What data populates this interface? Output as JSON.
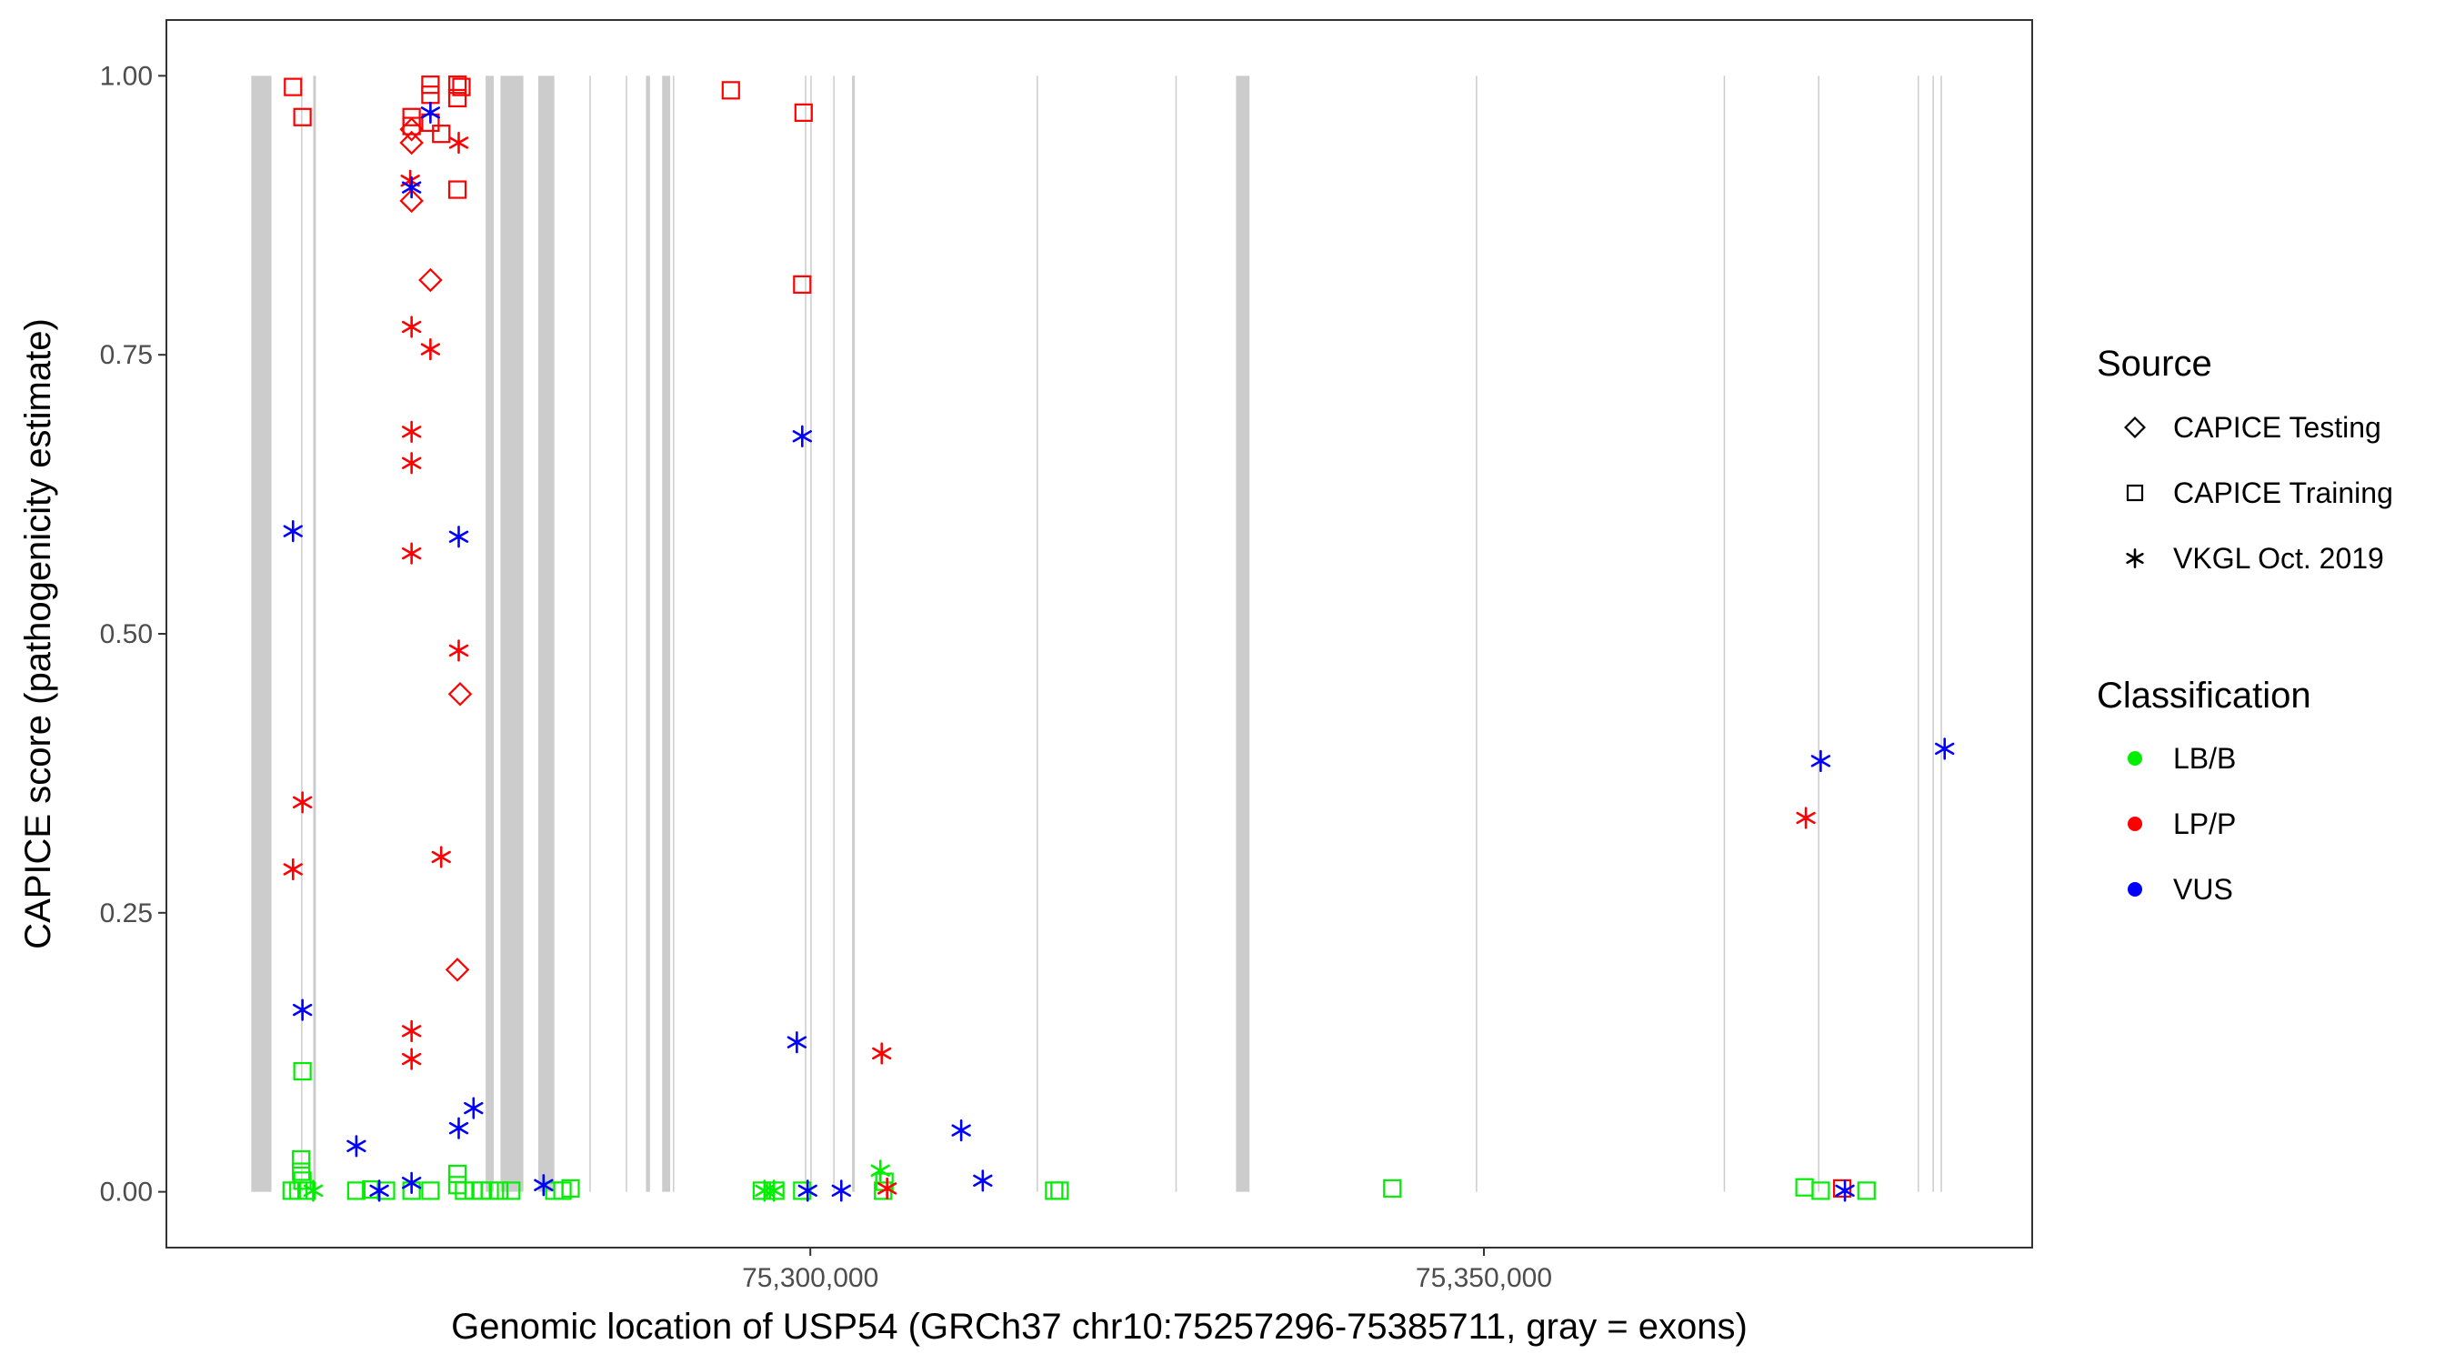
{
  "chart_data": {
    "type": "scatter",
    "title": "",
    "xlabel": "Genomic location of USP54 (GRCh37 chr10:75257296-75385711, gray = exons)",
    "ylabel": "CAPICE score (pathogenicity estimate)",
    "xlim": [
      75252200,
      75390700
    ],
    "ylim": [
      -0.05,
      1.05
    ],
    "x_ticks": [
      75300000,
      75350000
    ],
    "x_tick_labels": [
      "75,300,000",
      "75,350,000"
    ],
    "y_ticks": [
      0.0,
      0.25,
      0.5,
      0.75,
      1.0
    ],
    "y_tick_labels": [
      "0.00",
      "0.25",
      "0.50",
      "0.75",
      "1.00"
    ],
    "grid": false,
    "exons": [
      [
        75258500,
        75260000
      ],
      [
        75262200,
        75262300
      ],
      [
        75263100,
        75263300
      ],
      [
        75275900,
        75276500
      ],
      [
        75277000,
        75278700
      ],
      [
        75279800,
        75281000
      ],
      [
        75283600,
        75283700
      ],
      [
        75286300,
        75286400
      ],
      [
        75287800,
        75288100
      ],
      [
        75289000,
        75289600
      ],
      [
        75289800,
        75289900
      ],
      [
        75299600,
        75299700
      ],
      [
        75300000,
        75300100
      ],
      [
        75301700,
        75301800
      ],
      [
        75303100,
        75303300
      ],
      [
        75316800,
        75316900
      ],
      [
        75327100,
        75327200
      ],
      [
        75331600,
        75332600
      ],
      [
        75349400,
        75349500
      ],
      [
        75367800,
        75367900
      ],
      [
        75374800,
        75374900
      ],
      [
        75382200,
        75382300
      ],
      [
        75383300,
        75383400
      ],
      [
        75383900,
        75384000
      ]
    ],
    "legend": {
      "position": "right",
      "source_title": "Source",
      "source_items": [
        {
          "label": "CAPICE Testing",
          "shape": "diamond"
        },
        {
          "label": "CAPICE Training",
          "shape": "square"
        },
        {
          "label": "VKGL Oct. 2019",
          "shape": "asterisk"
        }
      ],
      "class_title": "Classification",
      "class_items": [
        {
          "label": "LB/B",
          "color": "#00ee00"
        },
        {
          "label": "LP/P",
          "color": "#ff0000"
        },
        {
          "label": "VUS",
          "color": "#0000ff"
        }
      ]
    },
    "series": [
      {
        "name": "CAPICE Testing",
        "shape": "diamond",
        "points": [
          {
            "x": 75270400,
            "y": 0.94,
            "cls": "LP/P"
          },
          {
            "x": 75270400,
            "y": 0.888,
            "cls": "LP/P"
          },
          {
            "x": 75270400,
            "y": 0.952,
            "cls": "LP/P"
          },
          {
            "x": 75271800,
            "y": 0.817,
            "cls": "LP/P"
          },
          {
            "x": 75274000,
            "y": 0.446,
            "cls": "LP/P"
          },
          {
            "x": 75273800,
            "y": 0.199,
            "cls": "LP/P"
          }
        ]
      },
      {
        "name": "CAPICE Training",
        "shape": "square",
        "points": [
          {
            "x": 75261600,
            "y": 0.99,
            "cls": "LP/P"
          },
          {
            "x": 75262300,
            "y": 0.963,
            "cls": "LP/P"
          },
          {
            "x": 75270400,
            "y": 0.963,
            "cls": "LP/P"
          },
          {
            "x": 75270400,
            "y": 0.955,
            "cls": "LP/P"
          },
          {
            "x": 75271800,
            "y": 0.992,
            "cls": "LP/P"
          },
          {
            "x": 75271800,
            "y": 0.983,
            "cls": "LP/P"
          },
          {
            "x": 75271800,
            "y": 0.958,
            "cls": "LP/P"
          },
          {
            "x": 75272600,
            "y": 0.948,
            "cls": "LP/P"
          },
          {
            "x": 75273800,
            "y": 0.992,
            "cls": "LP/P"
          },
          {
            "x": 75274100,
            "y": 0.99,
            "cls": "LP/P"
          },
          {
            "x": 75273800,
            "y": 0.98,
            "cls": "LP/P"
          },
          {
            "x": 75273800,
            "y": 0.898,
            "cls": "LP/P"
          },
          {
            "x": 75294100,
            "y": 0.987,
            "cls": "LP/P"
          },
          {
            "x": 75299500,
            "y": 0.967,
            "cls": "LP/P"
          },
          {
            "x": 75299400,
            "y": 0.813,
            "cls": "LP/P"
          },
          {
            "x": 75376600,
            "y": 0.003,
            "cls": "LP/P"
          },
          {
            "x": 75262300,
            "y": 0.108,
            "cls": "LB/B"
          },
          {
            "x": 75262200,
            "y": 0.029,
            "cls": "LB/B"
          },
          {
            "x": 75262200,
            "y": 0.018,
            "cls": "LB/B"
          },
          {
            "x": 75262300,
            "y": 0.01,
            "cls": "LB/B"
          },
          {
            "x": 75261500,
            "y": 0.001,
            "cls": "LB/B"
          },
          {
            "x": 75262000,
            "y": 0.001,
            "cls": "LB/B"
          },
          {
            "x": 75262600,
            "y": 0.001,
            "cls": "LB/B"
          },
          {
            "x": 75266300,
            "y": 0.001,
            "cls": "LB/B"
          },
          {
            "x": 75267400,
            "y": 0.002,
            "cls": "LB/B"
          },
          {
            "x": 75268500,
            "y": 0.001,
            "cls": "LB/B"
          },
          {
            "x": 75270400,
            "y": 0.001,
            "cls": "LB/B"
          },
          {
            "x": 75271800,
            "y": 0.001,
            "cls": "LB/B"
          },
          {
            "x": 75273800,
            "y": 0.016,
            "cls": "LB/B"
          },
          {
            "x": 75273800,
            "y": 0.006,
            "cls": "LB/B"
          },
          {
            "x": 75274300,
            "y": 0.001,
            "cls": "LB/B"
          },
          {
            "x": 75275000,
            "y": 0.001,
            "cls": "LB/B"
          },
          {
            "x": 75275600,
            "y": 0.001,
            "cls": "LB/B"
          },
          {
            "x": 75276200,
            "y": 0.001,
            "cls": "LB/B"
          },
          {
            "x": 75276900,
            "y": 0.001,
            "cls": "LB/B"
          },
          {
            "x": 75277800,
            "y": 0.001,
            "cls": "LB/B"
          },
          {
            "x": 75281000,
            "y": 0.001,
            "cls": "LB/B"
          },
          {
            "x": 75281600,
            "y": 0.001,
            "cls": "LB/B"
          },
          {
            "x": 75282200,
            "y": 0.003,
            "cls": "LB/B"
          },
          {
            "x": 75296400,
            "y": 0.001,
            "cls": "LB/B"
          },
          {
            "x": 75297400,
            "y": 0.001,
            "cls": "LB/B"
          },
          {
            "x": 75299400,
            "y": 0.001,
            "cls": "LB/B"
          },
          {
            "x": 75305400,
            "y": 0.001,
            "cls": "LB/B"
          },
          {
            "x": 75305500,
            "y": 0.009,
            "cls": "LB/B"
          },
          {
            "x": 75318100,
            "y": 0.001,
            "cls": "LB/B"
          },
          {
            "x": 75318500,
            "y": 0.001,
            "cls": "LB/B"
          },
          {
            "x": 75343200,
            "y": 0.003,
            "cls": "LB/B"
          },
          {
            "x": 75373800,
            "y": 0.004,
            "cls": "LB/B"
          },
          {
            "x": 75375000,
            "y": 0.001,
            "cls": "LB/B"
          },
          {
            "x": 75378400,
            "y": 0.001,
            "cls": "LB/B"
          }
        ]
      },
      {
        "name": "VKGL Oct. 2019",
        "shape": "asterisk",
        "points": [
          {
            "x": 75270300,
            "y": 0.906,
            "cls": "LP/P"
          },
          {
            "x": 75273900,
            "y": 0.94,
            "cls": "LP/P"
          },
          {
            "x": 75270400,
            "y": 0.775,
            "cls": "LP/P"
          },
          {
            "x": 75271800,
            "y": 0.755,
            "cls": "LP/P"
          },
          {
            "x": 75270400,
            "y": 0.681,
            "cls": "LP/P"
          },
          {
            "x": 75270400,
            "y": 0.653,
            "cls": "LP/P"
          },
          {
            "x": 75270400,
            "y": 0.572,
            "cls": "LP/P"
          },
          {
            "x": 75273900,
            "y": 0.485,
            "cls": "LP/P"
          },
          {
            "x": 75262300,
            "y": 0.349,
            "cls": "LP/P"
          },
          {
            "x": 75272600,
            "y": 0.3,
            "cls": "LP/P"
          },
          {
            "x": 75261600,
            "y": 0.289,
            "cls": "LP/P"
          },
          {
            "x": 75270400,
            "y": 0.144,
            "cls": "LP/P"
          },
          {
            "x": 75270400,
            "y": 0.119,
            "cls": "LP/P"
          },
          {
            "x": 75305300,
            "y": 0.124,
            "cls": "LP/P"
          },
          {
            "x": 75305700,
            "y": 0.003,
            "cls": "LP/P"
          },
          {
            "x": 75373900,
            "y": 0.335,
            "cls": "LP/P"
          },
          {
            "x": 75271800,
            "y": 0.967,
            "cls": "VUS"
          },
          {
            "x": 75270400,
            "y": 0.9,
            "cls": "VUS"
          },
          {
            "x": 75299400,
            "y": 0.677,
            "cls": "VUS"
          },
          {
            "x": 75261600,
            "y": 0.592,
            "cls": "VUS"
          },
          {
            "x": 75273900,
            "y": 0.587,
            "cls": "VUS"
          },
          {
            "x": 75375000,
            "y": 0.386,
            "cls": "VUS"
          },
          {
            "x": 75384200,
            "y": 0.397,
            "cls": "VUS"
          },
          {
            "x": 75262300,
            "y": 0.163,
            "cls": "VUS"
          },
          {
            "x": 75299000,
            "y": 0.134,
            "cls": "VUS"
          },
          {
            "x": 75275000,
            "y": 0.075,
            "cls": "VUS"
          },
          {
            "x": 75273900,
            "y": 0.057,
            "cls": "VUS"
          },
          {
            "x": 75311200,
            "y": 0.055,
            "cls": "VUS"
          },
          {
            "x": 75266300,
            "y": 0.041,
            "cls": "VUS"
          },
          {
            "x": 75312800,
            "y": 0.01,
            "cls": "VUS"
          },
          {
            "x": 75270400,
            "y": 0.008,
            "cls": "VUS"
          },
          {
            "x": 75280200,
            "y": 0.006,
            "cls": "VUS"
          },
          {
            "x": 75268000,
            "y": 0.001,
            "cls": "VUS"
          },
          {
            "x": 75299800,
            "y": 0.001,
            "cls": "VUS"
          },
          {
            "x": 75302300,
            "y": 0.001,
            "cls": "VUS"
          },
          {
            "x": 75376800,
            "y": 0.001,
            "cls": "VUS"
          },
          {
            "x": 75305200,
            "y": 0.019,
            "cls": "LB/B"
          },
          {
            "x": 75263100,
            "y": 0.001,
            "cls": "LB/B"
          },
          {
            "x": 75296600,
            "y": 0.001,
            "cls": "LB/B"
          },
          {
            "x": 75297300,
            "y": 0.001,
            "cls": "LB/B"
          }
        ]
      }
    ]
  }
}
